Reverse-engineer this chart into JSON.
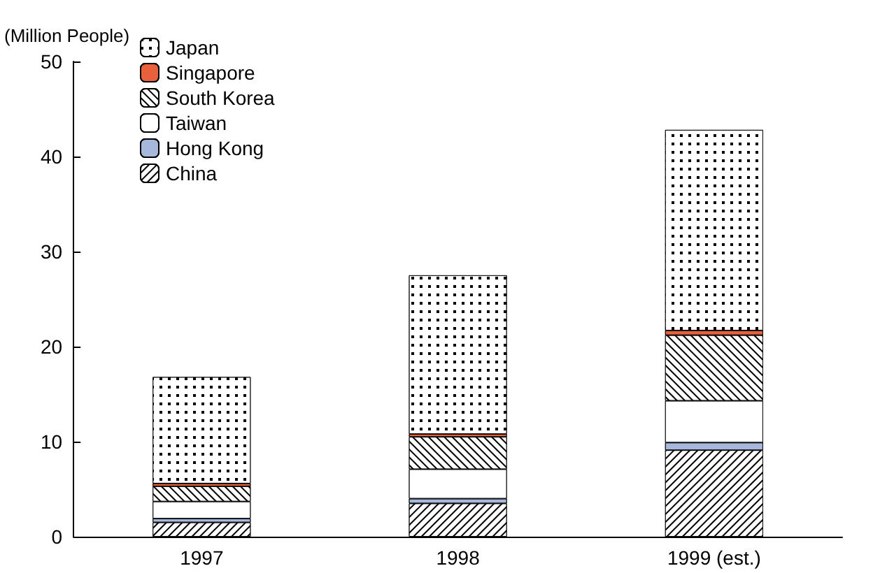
{
  "chart_data": {
    "type": "bar",
    "stacked": true,
    "ylabel": "(Million People)",
    "categories": [
      "1997",
      "1998",
      "1999 (est.)"
    ],
    "series": [
      {
        "name": "China",
        "color": "#ffffff",
        "values": [
          1.5,
          3.5,
          9.1
        ]
      },
      {
        "name": "Hong Kong",
        "color": "#a8b8dc",
        "values": [
          0.4,
          0.5,
          0.8
        ]
      },
      {
        "name": "Taiwan",
        "color": "#ffffff",
        "values": [
          1.8,
          3.1,
          4.4
        ]
      },
      {
        "name": "South Korea",
        "color": "#ffffff",
        "values": [
          1.6,
          3.4,
          6.9
        ]
      },
      {
        "name": "Singapore",
        "color": "#e8603c",
        "values": [
          0.3,
          0.3,
          0.5
        ]
      },
      {
        "name": "Japan",
        "color": "#ffffff",
        "values": [
          11.2,
          16.7,
          21.1
        ]
      }
    ],
    "ylim": [
      0,
      50
    ],
    "yticks": [
      0,
      10,
      20,
      30,
      40,
      50
    ],
    "grid": false,
    "legend": "top left"
  }
}
